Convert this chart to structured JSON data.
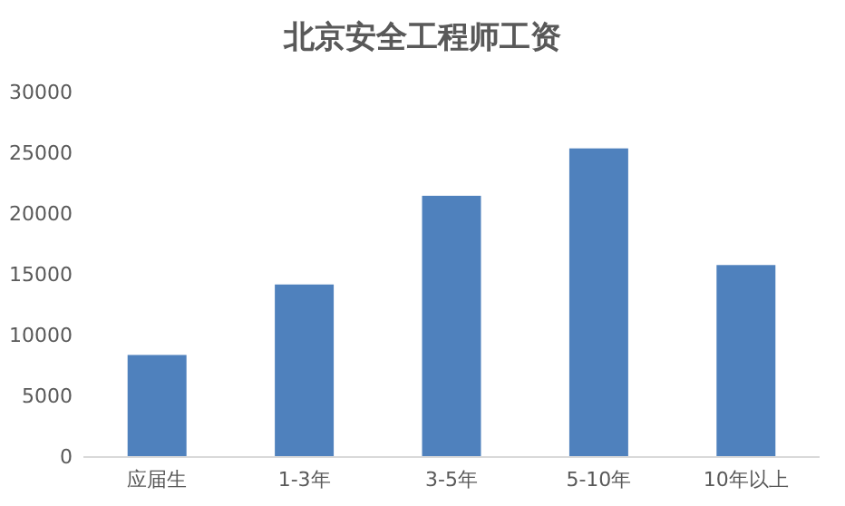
{
  "chart_data": {
    "type": "bar",
    "title": "北京安全工程师工资",
    "categories": [
      "应届生",
      "1-3年",
      "3-5年",
      "5-10年",
      "10年以上"
    ],
    "values": [
      8400,
      14200,
      21500,
      25400,
      15800
    ],
    "color": "#4f81bd",
    "ylim": [
      0,
      30000
    ],
    "yticks": [
      0,
      5000,
      10000,
      15000,
      20000,
      25000,
      30000
    ],
    "grid": false
  }
}
